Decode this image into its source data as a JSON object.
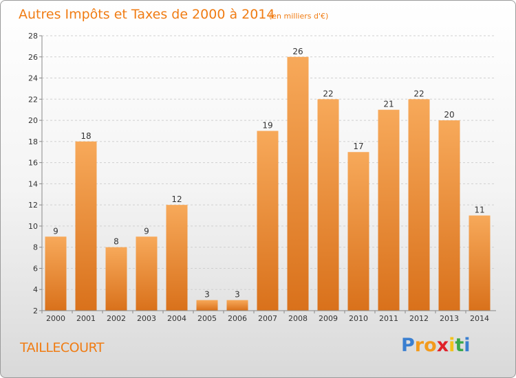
{
  "title": "Autres Impôts et Taxes de 2000 à 2014",
  "subtitle": "(en milliers d'€)",
  "commune": "TAILLECOURT",
  "logo": {
    "letters": [
      "P",
      "r",
      "o",
      "x",
      "i",
      "t",
      "i"
    ],
    "colors": [
      "#3a7fd0",
      "#f39a1c",
      "#f39a1c",
      "#e0222a",
      "#f3c21c",
      "#3aa84a",
      "#3a7fd0"
    ]
  },
  "colors": {
    "bar_top": "#f7a95a",
    "bar_bottom": "#d9711b",
    "title": "#f07c13"
  },
  "chart_data": {
    "type": "bar",
    "categories": [
      "2000",
      "2001",
      "2002",
      "2003",
      "2004",
      "2005",
      "2006",
      "2007",
      "2008",
      "2009",
      "2010",
      "2011",
      "2012",
      "2013",
      "2014"
    ],
    "values": [
      9,
      18,
      8,
      9,
      12,
      3,
      3,
      19,
      26,
      22,
      17,
      21,
      22,
      20,
      11
    ],
    "ylim": [
      2,
      28
    ],
    "yticks": [
      2,
      4,
      6,
      8,
      10,
      12,
      14,
      16,
      18,
      20,
      22,
      24,
      26,
      28
    ],
    "grid": true
  }
}
